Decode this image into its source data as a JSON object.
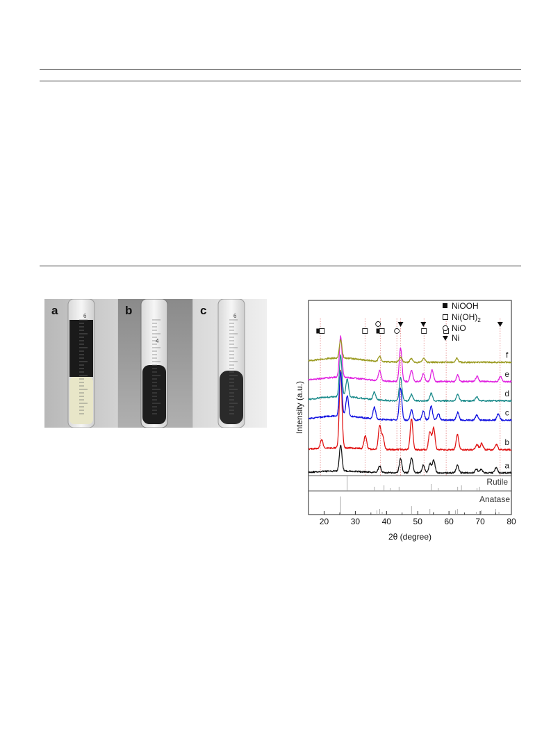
{
  "photo_panel": {
    "labels": [
      "a",
      "b",
      "c"
    ],
    "scale_marks": [
      "6",
      "4",
      "6"
    ]
  },
  "chart_data": {
    "type": "line",
    "xlabel": "2θ (degree)",
    "ylabel": "Intensity (a.u.)",
    "xlim": [
      15,
      80
    ],
    "x_ticks": [
      20,
      30,
      40,
      50,
      60,
      70,
      80
    ],
    "grid": false,
    "legend_position": "top-right",
    "series": [
      {
        "name": "a",
        "color": "#111111",
        "baseline": 0.0,
        "peaks": [
          [
            25.3,
            1.0
          ],
          [
            37.8,
            0.25
          ],
          [
            44.5,
            0.55
          ],
          [
            48.0,
            0.6
          ],
          [
            51.8,
            0.3
          ],
          [
            53.9,
            0.35
          ],
          [
            55.1,
            0.5
          ],
          [
            62.7,
            0.3
          ],
          [
            68.8,
            0.15
          ],
          [
            70.3,
            0.15
          ],
          [
            75.1,
            0.2
          ]
        ]
      },
      {
        "name": "b",
        "color": "#e01010",
        "baseline": 0.9,
        "peaks": [
          [
            19.2,
            0.35
          ],
          [
            25.3,
            3.0
          ],
          [
            33.2,
            0.5
          ],
          [
            37.8,
            0.9
          ],
          [
            38.8,
            0.5
          ],
          [
            48.0,
            1.2
          ],
          [
            53.9,
            0.7
          ],
          [
            55.1,
            0.85
          ],
          [
            62.7,
            0.6
          ],
          [
            69.0,
            0.2
          ],
          [
            70.5,
            0.25
          ],
          [
            75.2,
            0.2
          ]
        ]
      },
      {
        "name": "c",
        "color": "#1010e0",
        "baseline": 2.05,
        "peaks": [
          [
            25.3,
            1.7
          ],
          [
            27.4,
            0.8
          ],
          [
            36.1,
            0.45
          ],
          [
            44.5,
            1.25
          ],
          [
            48.0,
            0.4
          ],
          [
            51.8,
            0.35
          ],
          [
            54.3,
            0.55
          ],
          [
            56.6,
            0.25
          ],
          [
            62.8,
            0.3
          ],
          [
            68.9,
            0.2
          ],
          [
            75.8,
            0.25
          ]
        ]
      },
      {
        "name": "d",
        "color": "#1a8a8a",
        "baseline": 2.8,
        "peaks": [
          [
            25.3,
            1.6
          ],
          [
            27.4,
            0.7
          ],
          [
            36.1,
            0.3
          ],
          [
            44.5,
            0.9
          ],
          [
            48.0,
            0.25
          ],
          [
            54.3,
            0.3
          ],
          [
            62.8,
            0.25
          ],
          [
            68.9,
            0.15
          ]
        ]
      },
      {
        "name": "e",
        "color": "#e020e0",
        "baseline": 3.55,
        "peaks": [
          [
            25.3,
            1.6
          ],
          [
            37.8,
            0.4
          ],
          [
            44.5,
            1.3
          ],
          [
            48.0,
            0.45
          ],
          [
            51.8,
            0.3
          ],
          [
            54.6,
            0.45
          ],
          [
            62.8,
            0.25
          ],
          [
            69.0,
            0.2
          ],
          [
            76.5,
            0.2
          ]
        ]
      },
      {
        "name": "f",
        "color": "#9a9a20",
        "baseline": 4.3,
        "peaks": [
          [
            25.3,
            0.7
          ],
          [
            37.8,
            0.2
          ],
          [
            44.5,
            0.2
          ],
          [
            48.0,
            0.15
          ],
          [
            52.0,
            0.15
          ],
          [
            62.5,
            0.15
          ]
        ]
      }
    ],
    "series_labels": [
      "a",
      "b",
      "c",
      "d",
      "e",
      "f"
    ],
    "reference_patterns": [
      {
        "name": "Rutile",
        "lines": [
          27.4,
          36.1,
          39.2,
          41.2,
          44.0,
          54.3,
          56.6,
          62.8,
          64.0,
          69.0,
          69.8
        ]
      },
      {
        "name": "Anatase",
        "lines": [
          25.3,
          36.9,
          37.8,
          38.6,
          48.0,
          53.9,
          55.1,
          62.1,
          62.7,
          68.8,
          70.3,
          75.0,
          76.0
        ]
      }
    ],
    "legend": [
      {
        "label": "NiOOH",
        "symbol": "filled-square"
      },
      {
        "label": "Ni(OH)",
        "subscript": "2",
        "symbol": "open-square"
      },
      {
        "label": "NiO",
        "symbol": "open-circle"
      },
      {
        "label": "Ni",
        "symbol": "filled-triangle-down"
      }
    ],
    "phase_markers": [
      {
        "symbol": "filled-square",
        "x": 18.3
      },
      {
        "symbol": "open-square",
        "x": 19.3
      },
      {
        "symbol": "open-square",
        "x": 33.1
      },
      {
        "symbol": "open-circle",
        "x": 37.3,
        "row": 2
      },
      {
        "symbol": "filled-square",
        "x": 37.5
      },
      {
        "symbol": "open-square",
        "x": 38.5
      },
      {
        "symbol": "open-circle",
        "x": 43.3
      },
      {
        "symbol": "filled-triangle-down",
        "x": 44.5
      },
      {
        "symbol": "open-square",
        "x": 52.0
      },
      {
        "symbol": "filled-triangle-down",
        "x": 51.8
      },
      {
        "symbol": "open-square",
        "x": 59.1
      },
      {
        "symbol": "filled-triangle-down",
        "x": 76.4
      }
    ],
    "marker_dashed_lines": [
      18.8,
      33.1,
      38.0,
      43.3,
      44.5,
      52.0,
      59.1,
      76.4
    ]
  }
}
